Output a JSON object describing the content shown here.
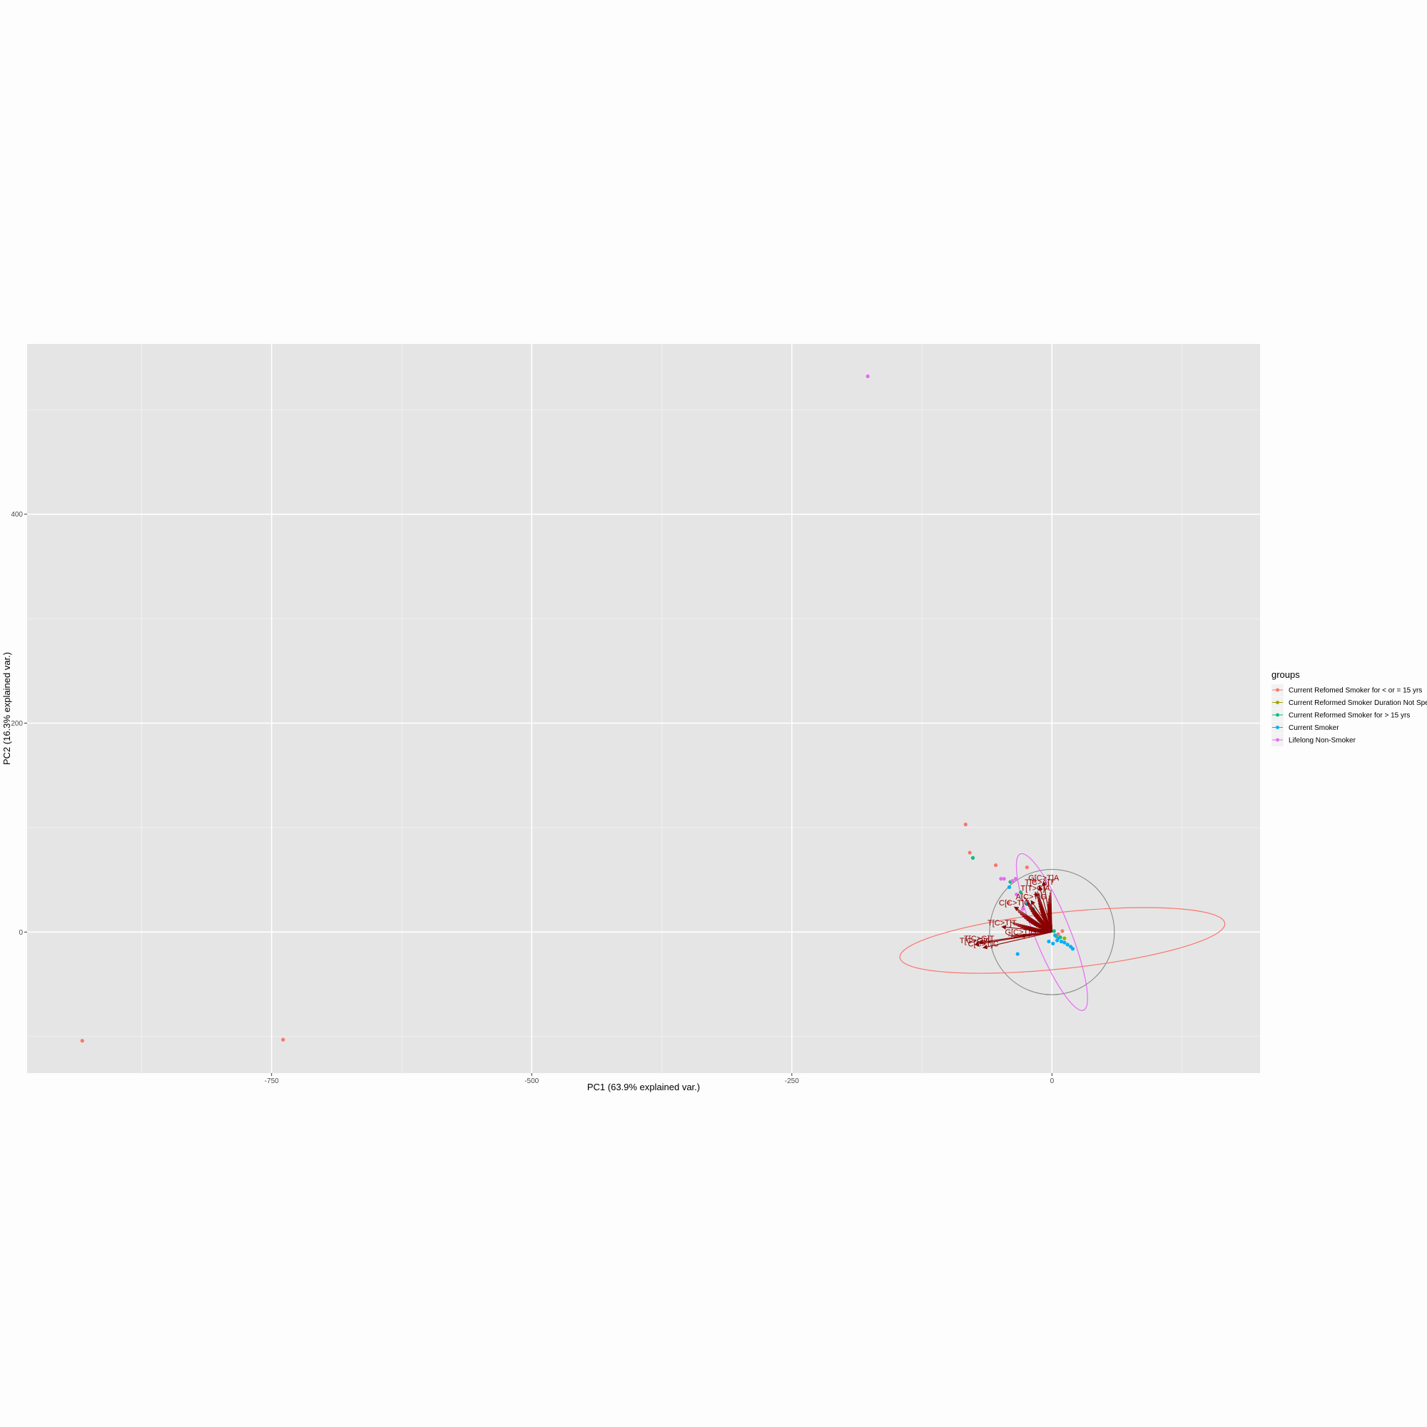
{
  "chart_data": {
    "type": "scatter",
    "xlabel": "PC1 (63.9% explained var.)",
    "ylabel": "PC2 (16.3% explained var.)",
    "xlim": [
      -985,
      200
    ],
    "ylim": [
      -135,
      563
    ],
    "x_ticks": [
      -750,
      -500,
      -250,
      0
    ],
    "x_tick_labels": [
      "-750",
      "-500",
      "-250",
      "0"
    ],
    "y_ticks": [
      0,
      200,
      400
    ],
    "y_tick_labels": [
      "0",
      "200",
      "400"
    ],
    "grid": true,
    "legend_title": "groups",
    "legend_position": "right",
    "series": [
      {
        "name": "Current Refomed Smoker for < or = 15 yrs",
        "color": "#f8766d",
        "points": [
          [
            -932,
            -104
          ],
          [
            -739,
            -103
          ],
          [
            -83,
            103
          ],
          [
            -79,
            76
          ],
          [
            -54,
            64
          ],
          [
            -24,
            62
          ],
          [
            -17,
            49
          ],
          [
            -42,
            28
          ],
          [
            -12,
            13
          ],
          [
            -2,
            4
          ],
          [
            6,
            -2
          ],
          [
            10,
            1
          ]
        ],
        "ellipse": {
          "cx": 10,
          "cy": -8,
          "rx": 157,
          "ry": 27,
          "angle_deg": 6
        }
      },
      {
        "name": "Current Reformed Smoker Duration Not Specified",
        "color": "#a3a500",
        "points": [
          [
            -8,
            3
          ],
          [
            4,
            -4
          ],
          [
            12,
            -6
          ]
        ]
      },
      {
        "name": "Current Reformed Smoker for > 15 yrs",
        "color": "#00bf7d",
        "points": [
          [
            -76,
            71
          ],
          [
            -30,
            38
          ],
          [
            -40,
            48
          ],
          [
            -18,
            22
          ],
          [
            -6,
            8
          ],
          [
            2,
            1
          ],
          [
            8,
            -5
          ]
        ]
      },
      {
        "name": "Current Smoker",
        "color": "#00b0f6",
        "points": [
          [
            -33,
            -21
          ],
          [
            -41,
            43
          ],
          [
            -24,
            27
          ],
          [
            -8,
            10
          ],
          [
            -2,
            2
          ],
          [
            3,
            -3
          ],
          [
            6,
            -6
          ],
          [
            9,
            -9
          ],
          [
            12,
            -10
          ],
          [
            15,
            -12
          ],
          [
            18,
            -14
          ],
          [
            20,
            -16
          ],
          [
            -3,
            -9
          ],
          [
            1,
            -11
          ],
          [
            5,
            -8
          ]
        ]
      },
      {
        "name": "Lifelong Non-Smoker",
        "color": "#e76bf3",
        "points": [
          [
            -177,
            532
          ],
          [
            -49,
            51
          ],
          [
            -46,
            51
          ],
          [
            -38,
            49
          ],
          [
            -35,
            51
          ],
          [
            -34,
            36
          ],
          [
            -28,
            22
          ],
          [
            -14,
            15
          ],
          [
            -4,
            6
          ]
        ],
        "ellipse": {
          "cx": 0,
          "cy": 0,
          "rx": 81,
          "ry": 17,
          "angle_deg": -68
        }
      }
    ],
    "unit_circle": {
      "cx": 0,
      "cy": 0,
      "r": 60,
      "color": "#808080"
    },
    "loading_vectors": [
      {
        "label": "T[C>T]T",
        "x": -48,
        "y": 5
      },
      {
        "label": "G[C>T]G",
        "x": -30,
        "y": -4
      },
      {
        "label": "T[C>A]T",
        "x": -12,
        "y": 44
      },
      {
        "label": "G[C>T]A",
        "x": -8,
        "y": 48
      },
      {
        "label": "C[C>T]G",
        "x": -36,
        "y": 24
      },
      {
        "label": "T[C>G]T",
        "x": -70,
        "y": -10
      },
      {
        "label": "T[C>G]A",
        "x": -74,
        "y": -12
      },
      {
        "label": "C[C>T]C",
        "x": -66,
        "y": -15
      },
      {
        "label": "A[C>T]G",
        "x": -20,
        "y": 30
      },
      {
        "label": "T[T>C]A",
        "x": -16,
        "y": 38
      }
    ]
  }
}
